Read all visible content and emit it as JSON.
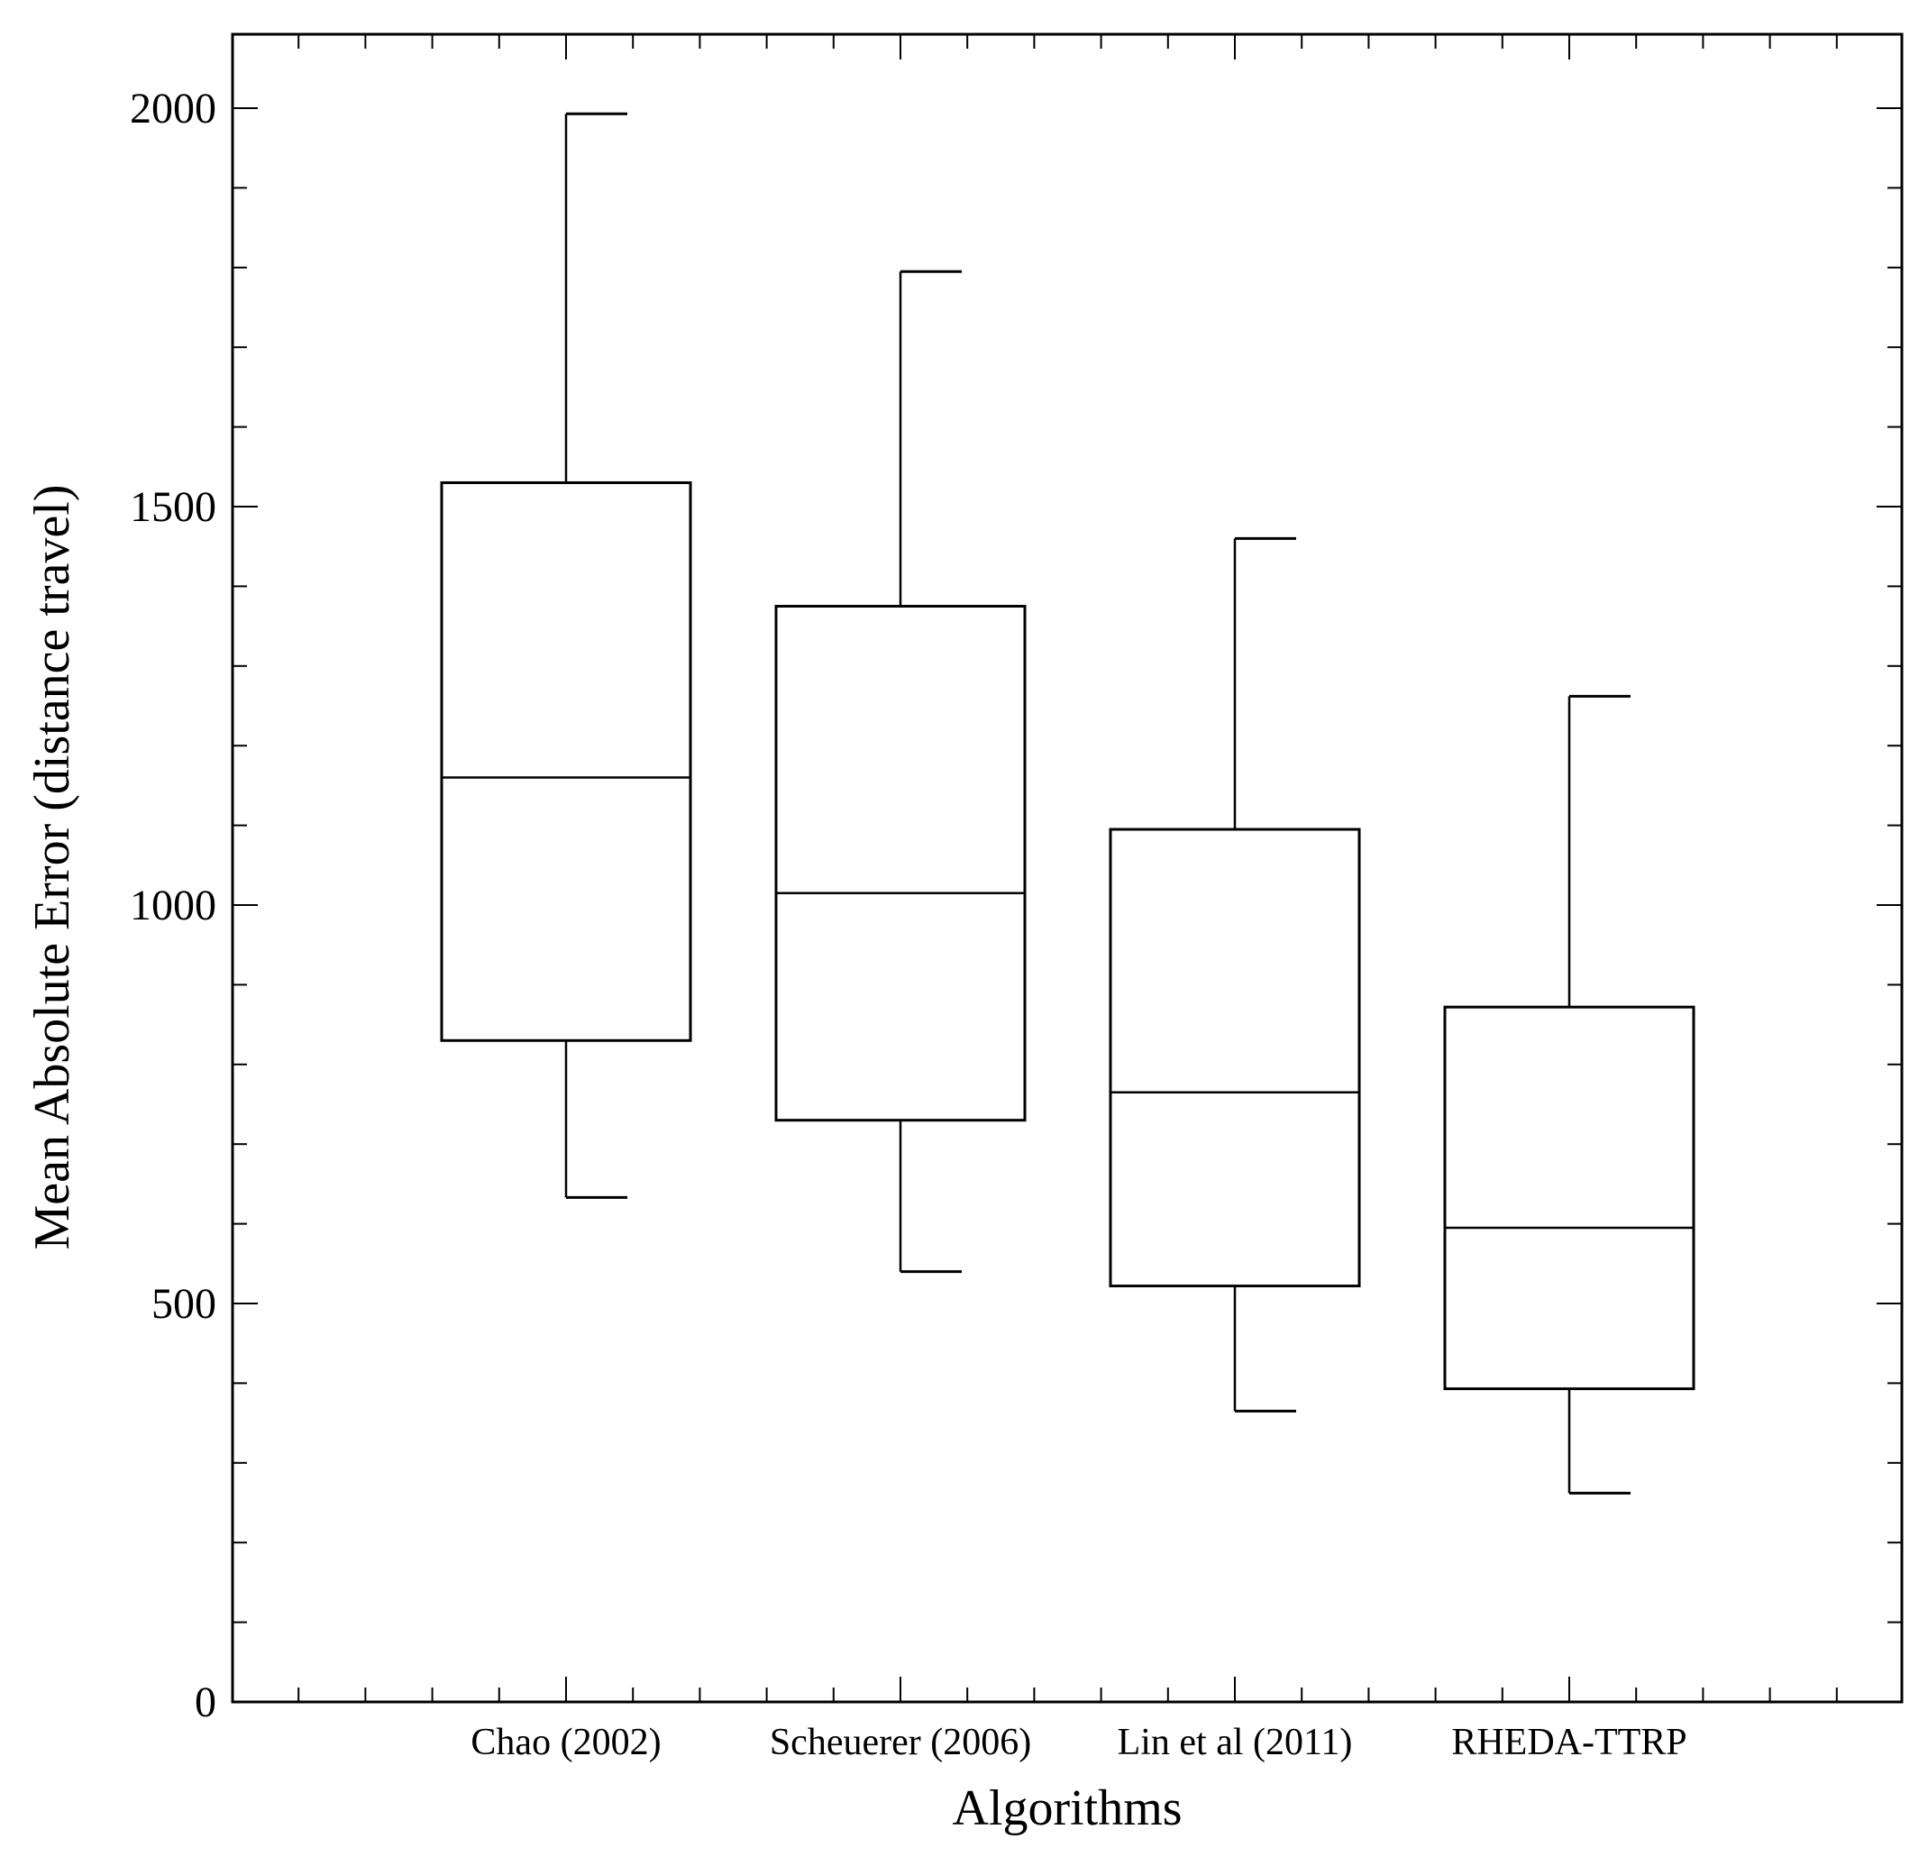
{
  "chart_data": {
    "type": "box",
    "title": "",
    "xlabel": "Algorithms",
    "ylabel": "Mean Absolute Error (distance travel)",
    "ylim": [
      0,
      2100
    ],
    "yticks": [
      0,
      500,
      1000,
      1500,
      2000
    ],
    "grid": false,
    "categories": [
      "Chao (2002)",
      "Scheuerer (2006)",
      "Lin et al (2011)",
      "RHEDA-TTRP"
    ],
    "boxes": [
      {
        "category": "Chao (2002)",
        "min": 633,
        "q1": 830,
        "median": 1160,
        "q3": 1530,
        "max": 1993
      },
      {
        "category": "Scheuerer (2006)",
        "min": 540,
        "q1": 730,
        "median": 1015,
        "q3": 1375,
        "max": 1795
      },
      {
        "category": "Lin et al (2011)",
        "min": 365,
        "q1": 522,
        "median": 765,
        "q3": 1095,
        "max": 1460
      },
      {
        "category": "RHEDA-TTRP",
        "min": 262,
        "q1": 393,
        "median": 595,
        "q3": 872,
        "max": 1262
      }
    ]
  }
}
